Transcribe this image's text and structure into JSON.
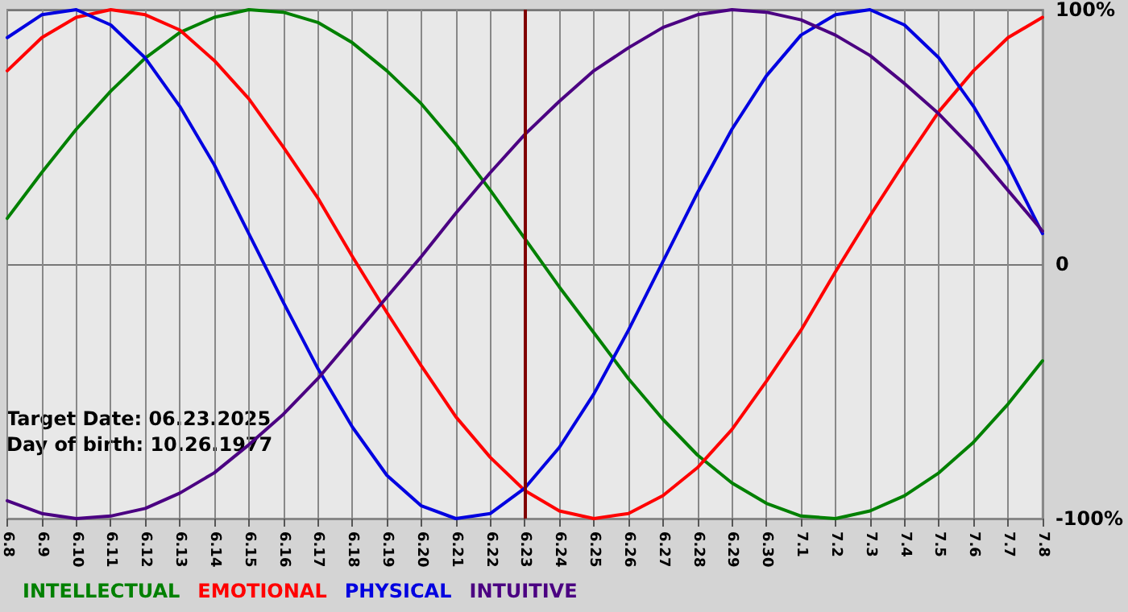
{
  "chart_data": {
    "type": "line",
    "categories": [
      "6.8",
      "6.9",
      "6.10",
      "6.11",
      "6.12",
      "6.13",
      "6.14",
      "6.15",
      "6.16",
      "6.17",
      "6.18",
      "6.19",
      "6.20",
      "6.21",
      "6.22",
      "6.23",
      "6.24",
      "6.25",
      "6.26",
      "6.27",
      "6.28",
      "6.29",
      "6.30",
      "7.1",
      "7.2",
      "7.3",
      "7.4",
      "7.5",
      "7.6",
      "7.7",
      "7.8"
    ],
    "series": [
      {
        "name": "INTELLECTUAL",
        "color": "#008000",
        "values": [
          18,
          36,
          53,
          68,
          81,
          91,
          97,
          100,
          99,
          95,
          87,
          76,
          63,
          47,
          29,
          10,
          -9,
          -27,
          -45,
          -61,
          -75,
          -86,
          -94,
          -99,
          -100,
          -97,
          -91,
          -82,
          -70,
          -55,
          -38
        ]
      },
      {
        "name": "EMOTIONAL",
        "color": "#ff0000",
        "values": [
          76,
          89,
          97,
          100,
          98,
          92,
          80,
          65,
          46,
          26,
          3,
          -19,
          -40,
          -60,
          -76,
          -89,
          -97,
          -100,
          -98,
          -91,
          -80,
          -65,
          -46,
          -26,
          -3,
          19,
          40,
          60,
          76,
          89,
          97
        ]
      },
      {
        "name": "PHYSICAL",
        "color": "#0000e0",
        "values": [
          89,
          98,
          100,
          94,
          81,
          62,
          39,
          12,
          -15,
          -41,
          -64,
          -83,
          -95,
          -100,
          -98,
          -88,
          -72,
          -51,
          -26,
          1,
          28,
          53,
          74,
          90,
          98,
          100,
          94,
          81,
          62,
          39,
          12
        ]
      },
      {
        "name": "INTUITIVE",
        "color": "#4b0082",
        "values": [
          -93,
          -98,
          -100,
          -99,
          -96,
          -90,
          -82,
          -71,
          -59,
          -45,
          -29,
          -13,
          3,
          20,
          36,
          51,
          64,
          76,
          85,
          93,
          98,
          100,
          99,
          96,
          90,
          82,
          71,
          59,
          45,
          29,
          13
        ]
      }
    ],
    "ylim": [
      -100,
      100
    ],
    "yticks": [
      {
        "value": -100,
        "label": "-100%"
      },
      0,
      {
        "value": 100,
        "label": "100%"
      }
    ],
    "ref_lines": [
      {
        "axis": "x",
        "value": "6.23",
        "color": "#800000"
      }
    ],
    "annotations": [
      "Target Date: 06.23.2025",
      "Day of birth: 10.26.1977"
    ],
    "grid": true,
    "legend": "bottom",
    "marker": "none",
    "line_style": "solid"
  }
}
